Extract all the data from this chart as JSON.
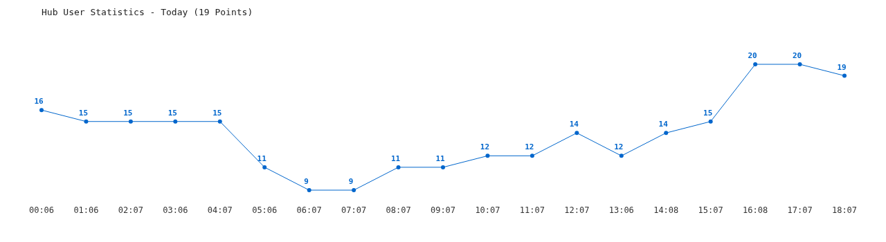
{
  "chart_data": {
    "type": "line",
    "title": "Hub User Statistics - Today (19 Points)",
    "categories": [
      "00:06",
      "01:06",
      "02:07",
      "03:06",
      "04:07",
      "05:06",
      "06:07",
      "07:07",
      "08:07",
      "09:07",
      "10:07",
      "11:07",
      "12:07",
      "13:06",
      "14:08",
      "15:07",
      "16:08",
      "17:07",
      "18:07"
    ],
    "series": [
      {
        "color": "#0066cc",
        "values": [
          16,
          15,
          15,
          15,
          15,
          11,
          9,
          9,
          11,
          11,
          12,
          12,
          14,
          12,
          14,
          15,
          20,
          20,
          19
        ]
      }
    ],
    "data_labels": true,
    "marker": "circle",
    "tick_labels": "x"
  }
}
